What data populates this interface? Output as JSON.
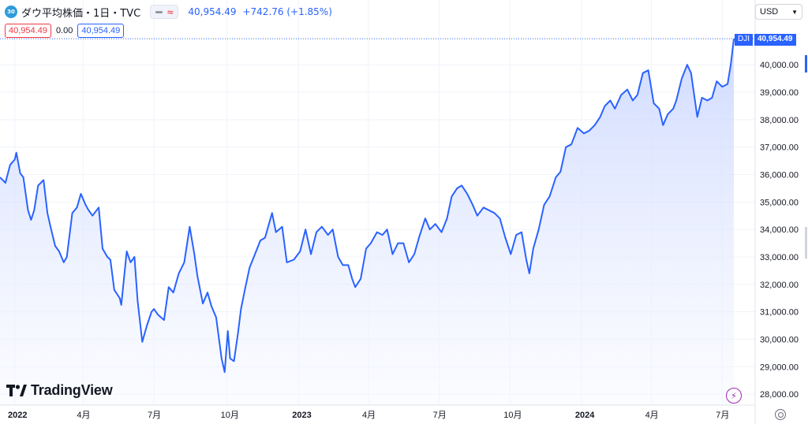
{
  "header": {
    "badge": "30",
    "title": "ダウ平均株価・1日・TVC",
    "last": "40,954.49",
    "change": "+742.76 (+1.85%)"
  },
  "quote": {
    "bid": "40,954.49",
    "spread": "0.00",
    "ask": "40,954.49"
  },
  "currency": {
    "label": "USD"
  },
  "price_tag": {
    "symbol": "DJI",
    "value": "40,954.49"
  },
  "branding": {
    "name": "TradingView"
  },
  "colors": {
    "line": "#2962ff",
    "fill_top": "#c9d6ff",
    "fill_bottom": "#f5f7ff",
    "grid": "#f0f3fa"
  },
  "chart_data": {
    "type": "area",
    "y_ticks": [
      "28,000.00",
      "29,000.00",
      "30,000.00",
      "31,000.00",
      "32,000.00",
      "33,000.00",
      "34,000.00",
      "35,000.00",
      "36,000.00",
      "37,000.00",
      "38,000.00",
      "39,000.00",
      "40,000.00"
    ],
    "y_tick_values": [
      28000,
      29000,
      30000,
      31000,
      32000,
      33000,
      34000,
      35000,
      36000,
      37000,
      38000,
      39000,
      40000
    ],
    "x_ticks": [
      {
        "label": "2022",
        "date": "2022-01-03",
        "year": true
      },
      {
        "label": "4月",
        "date": "2022-04-01",
        "year": false
      },
      {
        "label": "7月",
        "date": "2022-07-01",
        "year": false
      },
      {
        "label": "10月",
        "date": "2022-10-03",
        "year": false
      },
      {
        "label": "2023",
        "date": "2023-01-03",
        "year": true
      },
      {
        "label": "4月",
        "date": "2023-04-03",
        "year": false
      },
      {
        "label": "7月",
        "date": "2023-07-03",
        "year": false
      },
      {
        "label": "10月",
        "date": "2023-10-02",
        "year": false
      },
      {
        "label": "2024",
        "date": "2024-01-02",
        "year": true
      },
      {
        "label": "4月",
        "date": "2024-04-01",
        "year": false
      },
      {
        "label": "7月",
        "date": "2024-07-01",
        "year": false
      }
    ],
    "ylim": [
      27600,
      41500
    ],
    "series": [
      {
        "points": [
          [
            "2021-12-15",
            35900
          ],
          [
            "2021-12-22",
            35700
          ],
          [
            "2021-12-28",
            36350
          ],
          [
            "2022-01-03",
            36550
          ],
          [
            "2022-01-05",
            36800
          ],
          [
            "2022-01-10",
            36050
          ],
          [
            "2022-01-14",
            35900
          ],
          [
            "2022-01-20",
            34700
          ],
          [
            "2022-01-24",
            34350
          ],
          [
            "2022-01-28",
            34700
          ],
          [
            "2022-02-02",
            35600
          ],
          [
            "2022-02-09",
            35800
          ],
          [
            "2022-02-14",
            34600
          ],
          [
            "2022-02-18",
            34100
          ],
          [
            "2022-02-24",
            33400
          ],
          [
            "2022-03-01",
            33200
          ],
          [
            "2022-03-07",
            32800
          ],
          [
            "2022-03-11",
            33000
          ],
          [
            "2022-03-18",
            34600
          ],
          [
            "2022-03-24",
            34800
          ],
          [
            "2022-03-29",
            35300
          ],
          [
            "2022-04-04",
            34900
          ],
          [
            "2022-04-08",
            34700
          ],
          [
            "2022-04-13",
            34500
          ],
          [
            "2022-04-21",
            34800
          ],
          [
            "2022-04-26",
            33300
          ],
          [
            "2022-05-02",
            33000
          ],
          [
            "2022-05-06",
            32900
          ],
          [
            "2022-05-11",
            31800
          ],
          [
            "2022-05-18",
            31500
          ],
          [
            "2022-05-20",
            31250
          ],
          [
            "2022-05-27",
            33200
          ],
          [
            "2022-06-01",
            32800
          ],
          [
            "2022-06-06",
            33000
          ],
          [
            "2022-06-10",
            31400
          ],
          [
            "2022-06-16",
            29900
          ],
          [
            "2022-06-22",
            30500
          ],
          [
            "2022-06-28",
            31000
          ],
          [
            "2022-07-01",
            31100
          ],
          [
            "2022-07-06",
            30900
          ],
          [
            "2022-07-14",
            30700
          ],
          [
            "2022-07-20",
            31900
          ],
          [
            "2022-07-26",
            31700
          ],
          [
            "2022-08-02",
            32400
          ],
          [
            "2022-08-09",
            32800
          ],
          [
            "2022-08-16",
            34100
          ],
          [
            "2022-08-22",
            33100
          ],
          [
            "2022-08-26",
            32300
          ],
          [
            "2022-09-02",
            31300
          ],
          [
            "2022-09-08",
            31700
          ],
          [
            "2022-09-13",
            31200
          ],
          [
            "2022-09-19",
            30800
          ],
          [
            "2022-09-26",
            29300
          ],
          [
            "2022-09-30",
            28800
          ],
          [
            "2022-10-04",
            30300
          ],
          [
            "2022-10-07",
            29300
          ],
          [
            "2022-10-12",
            29200
          ],
          [
            "2022-10-17",
            30200
          ],
          [
            "2022-10-21",
            31100
          ],
          [
            "2022-10-26",
            31800
          ],
          [
            "2022-11-01",
            32600
          ],
          [
            "2022-11-08",
            33100
          ],
          [
            "2022-11-15",
            33600
          ],
          [
            "2022-11-21",
            33700
          ],
          [
            "2022-11-30",
            34600
          ],
          [
            "2022-12-05",
            33900
          ],
          [
            "2022-12-13",
            34100
          ],
          [
            "2022-12-19",
            32800
          ],
          [
            "2022-12-28",
            32900
          ],
          [
            "2023-01-05",
            33200
          ],
          [
            "2023-01-12",
            34000
          ],
          [
            "2023-01-19",
            33100
          ],
          [
            "2023-01-26",
            33900
          ],
          [
            "2023-02-02",
            34100
          ],
          [
            "2023-02-10",
            33800
          ],
          [
            "2023-02-16",
            34000
          ],
          [
            "2023-02-23",
            33000
          ],
          [
            "2023-03-01",
            32700
          ],
          [
            "2023-03-08",
            32700
          ],
          [
            "2023-03-13",
            32200
          ],
          [
            "2023-03-17",
            31900
          ],
          [
            "2023-03-24",
            32200
          ],
          [
            "2023-03-31",
            33300
          ],
          [
            "2023-04-06",
            33500
          ],
          [
            "2023-04-14",
            33900
          ],
          [
            "2023-04-21",
            33800
          ],
          [
            "2023-04-27",
            34000
          ],
          [
            "2023-05-04",
            33100
          ],
          [
            "2023-05-11",
            33500
          ],
          [
            "2023-05-18",
            33500
          ],
          [
            "2023-05-25",
            32800
          ],
          [
            "2023-06-01",
            33100
          ],
          [
            "2023-06-07",
            33700
          ],
          [
            "2023-06-15",
            34400
          ],
          [
            "2023-06-21",
            34000
          ],
          [
            "2023-06-28",
            34200
          ],
          [
            "2023-07-06",
            33900
          ],
          [
            "2023-07-13",
            34400
          ],
          [
            "2023-07-19",
            35200
          ],
          [
            "2023-07-26",
            35500
          ],
          [
            "2023-08-01",
            35600
          ],
          [
            "2023-08-08",
            35300
          ],
          [
            "2023-08-15",
            34900
          ],
          [
            "2023-08-21",
            34500
          ],
          [
            "2023-08-29",
            34800
          ],
          [
            "2023-09-05",
            34700
          ],
          [
            "2023-09-12",
            34600
          ],
          [
            "2023-09-19",
            34400
          ],
          [
            "2023-09-26",
            33700
          ],
          [
            "2023-10-03",
            33100
          ],
          [
            "2023-10-10",
            33800
          ],
          [
            "2023-10-17",
            33900
          ],
          [
            "2023-10-23",
            32900
          ],
          [
            "2023-10-27",
            32400
          ],
          [
            "2023-11-01",
            33300
          ],
          [
            "2023-11-08",
            34000
          ],
          [
            "2023-11-15",
            34900
          ],
          [
            "2023-11-22",
            35200
          ],
          [
            "2023-11-30",
            35900
          ],
          [
            "2023-12-06",
            36100
          ],
          [
            "2023-12-13",
            37000
          ],
          [
            "2023-12-20",
            37100
          ],
          [
            "2023-12-28",
            37700
          ],
          [
            "2024-01-05",
            37500
          ],
          [
            "2024-01-12",
            37600
          ],
          [
            "2024-01-19",
            37800
          ],
          [
            "2024-01-26",
            38100
          ],
          [
            "2024-02-01",
            38500
          ],
          [
            "2024-02-08",
            38700
          ],
          [
            "2024-02-14",
            38400
          ],
          [
            "2024-02-22",
            38900
          ],
          [
            "2024-03-01",
            39100
          ],
          [
            "2024-03-08",
            38700
          ],
          [
            "2024-03-14",
            38900
          ],
          [
            "2024-03-21",
            39700
          ],
          [
            "2024-03-28",
            39800
          ],
          [
            "2024-04-04",
            38600
          ],
          [
            "2024-04-11",
            38400
          ],
          [
            "2024-04-16",
            37800
          ],
          [
            "2024-04-22",
            38200
          ],
          [
            "2024-04-29",
            38400
          ],
          [
            "2024-05-03",
            38700
          ],
          [
            "2024-05-10",
            39500
          ],
          [
            "2024-05-17",
            40000
          ],
          [
            "2024-05-22",
            39700
          ],
          [
            "2024-05-30",
            38100
          ],
          [
            "2024-06-05",
            38800
          ],
          [
            "2024-06-12",
            38700
          ],
          [
            "2024-06-18",
            38800
          ],
          [
            "2024-06-24",
            39400
          ],
          [
            "2024-07-01",
            39200
          ],
          [
            "2024-07-08",
            39300
          ],
          [
            "2024-07-12",
            40000
          ],
          [
            "2024-07-16",
            40950
          ]
        ]
      }
    ]
  }
}
